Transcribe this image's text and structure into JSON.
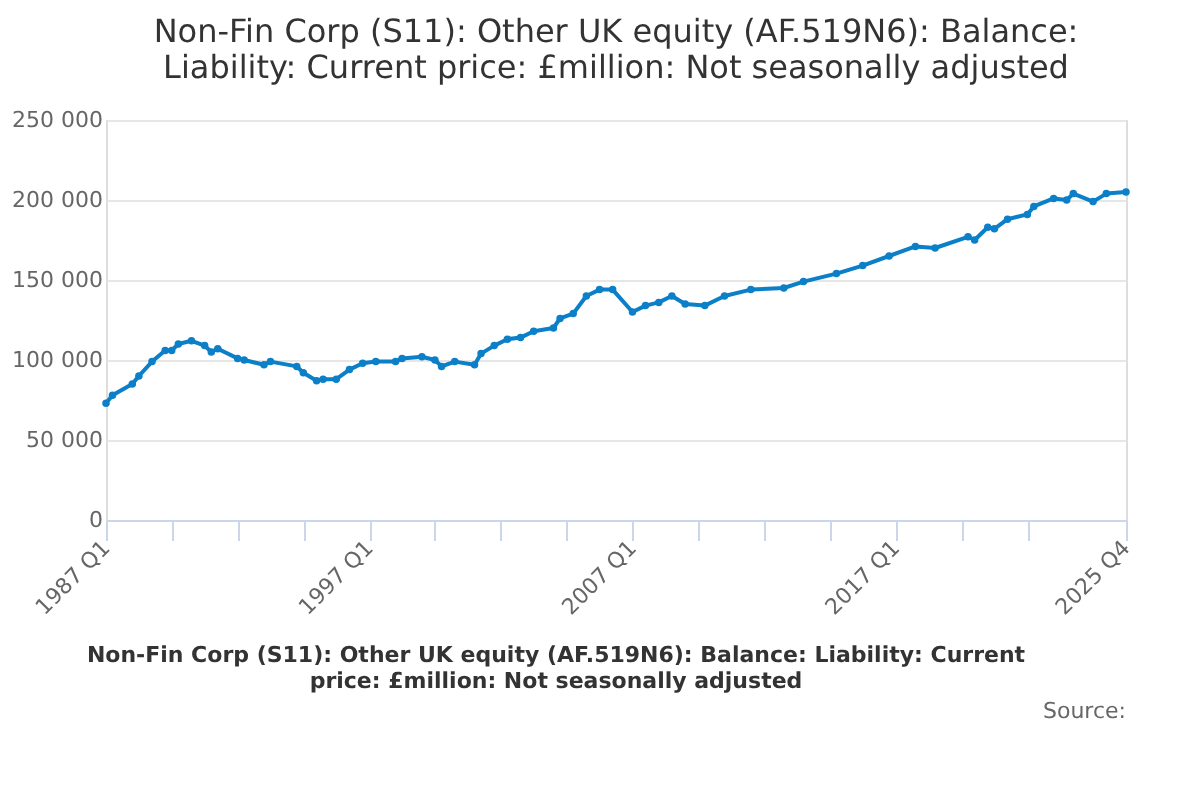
{
  "chart_data": {
    "type": "line",
    "title": "Non-Fin Corp (S11): Other UK equity (AF.519N6): Balance: Liability: Current price: £million: Not seasonally adjusted",
    "annotations": [
      "Non-Fin Corp (S11): Other UK equity (AF.519N6): Balance: Liability: Current price: £million: Not seasonally adjusted",
      "Source:"
    ],
    "x": [
      "1987-01",
      "1987-04",
      "1988-01",
      "1988-04",
      "1988-10",
      "1989-04",
      "1989-07",
      "1989-10",
      "1990-04",
      "1990-10",
      "1991-01",
      "1991-04",
      "1992-01",
      "1992-04",
      "1993-01",
      "1993-04",
      "1994-04",
      "1994-07",
      "1995-01",
      "1995-04",
      "1995-10",
      "1996-04",
      "1996-10",
      "1997-04",
      "1998-01",
      "1998-04",
      "1999-01",
      "1999-07",
      "1999-10",
      "2000-04",
      "2001-01",
      "2001-04",
      "2001-10",
      "2002-04",
      "2002-10",
      "2003-04",
      "2004-01",
      "2004-04",
      "2004-10",
      "2005-04",
      "2005-10",
      "2006-04",
      "2007-01",
      "2007-07",
      "2008-01",
      "2008-07",
      "2009-01",
      "2009-10",
      "2010-07",
      "2011-07",
      "2012-10",
      "2013-07",
      "2014-10",
      "2015-10",
      "2016-10",
      "2017-10",
      "2018-07",
      "2019-10",
      "2020-01",
      "2020-07",
      "2020-10",
      "2021-04",
      "2022-01",
      "2022-04",
      "2023-01",
      "2023-07",
      "2023-10",
      "2024-07",
      "2025-01",
      "2025-10"
    ],
    "series": [
      {
        "color": "#0b7fc7",
        "values": [
          73000,
          78000,
          85000,
          90000,
          99000,
          106000,
          106000,
          110000,
          112000,
          109000,
          105000,
          107000,
          101000,
          100000,
          97000,
          99000,
          96000,
          92000,
          87000,
          88000,
          88000,
          94000,
          98000,
          99000,
          99000,
          101000,
          102000,
          100000,
          96000,
          99000,
          97000,
          104000,
          109000,
          113000,
          114000,
          118000,
          120000,
          126000,
          129000,
          140000,
          144000,
          144000,
          130000,
          134000,
          136000,
          140000,
          135000,
          134000,
          140000,
          144000,
          145000,
          149000,
          154000,
          159000,
          165000,
          171000,
          170000,
          177000,
          175000,
          183000,
          182000,
          188000,
          191000,
          196000,
          201000,
          200000,
          204000,
          199000,
          204000,
          205000
        ]
      }
    ],
    "xlim": [
      "1987-01",
      "2025-10"
    ],
    "xticks": [
      {
        "value": "1987-01",
        "label": "1987 Q1"
      },
      {
        "value": "1989-07",
        "label": null
      },
      {
        "value": "1992-01",
        "label": null
      },
      {
        "value": "1994-07",
        "label": null
      },
      {
        "value": "1997-01",
        "label": "1997 Q1"
      },
      {
        "value": "1999-07",
        "label": null
      },
      {
        "value": "2002-01",
        "label": null
      },
      {
        "value": "2004-07",
        "label": null
      },
      {
        "value": "2007-01",
        "label": "2007 Q1"
      },
      {
        "value": "2009-07",
        "label": null
      },
      {
        "value": "2012-01",
        "label": null
      },
      {
        "value": "2014-07",
        "label": null
      },
      {
        "value": "2017-01",
        "label": "2017 Q1"
      },
      {
        "value": "2019-07",
        "label": null
      },
      {
        "value": "2022-01",
        "label": null
      },
      {
        "value": "2025-10",
        "label": "2025 Q4"
      }
    ],
    "ylim": [
      0,
      250000
    ],
    "yticks": [
      0,
      {
        "value": 50000,
        "label": "50 000"
      },
      {
        "value": 100000,
        "label": "100 000"
      },
      {
        "value": 150000,
        "label": "150 000"
      },
      {
        "value": 200000,
        "label": "200 000"
      },
      {
        "value": 250000,
        "label": "250 000"
      }
    ],
    "grid": "y",
    "marker": "circle",
    "line_style": "solid",
    "legend": false
  }
}
